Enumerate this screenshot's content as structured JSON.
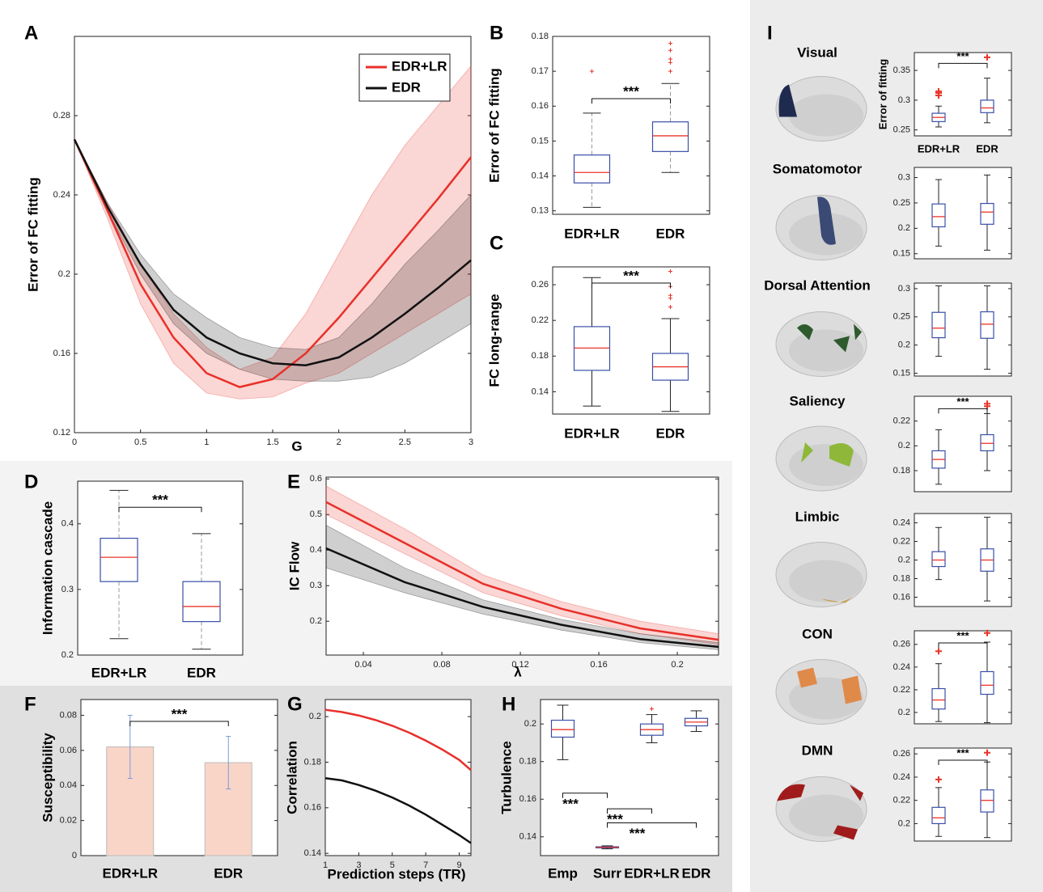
{
  "chart_data": [
    {
      "panel": "A",
      "type": "line",
      "ylabel": "Error of FC fitting",
      "xlabel": "G",
      "x": [
        0,
        0.25,
        0.5,
        0.75,
        1,
        1.25,
        1.5,
        1.75,
        2,
        2.25,
        2.5,
        2.75,
        3
      ],
      "xlim": [
        0,
        3
      ],
      "ylim": [
        0.12,
        0.32
      ],
      "xticks": [
        0,
        0.5,
        1,
        1.5,
        2,
        2.5,
        3
      ],
      "yticks": [
        0.12,
        0.16,
        0.2,
        0.24,
        0.28
      ],
      "legend": "upper right",
      "grid": false,
      "series": [
        {
          "name": "EDR+LR",
          "color": "#e8302a",
          "values": [
            0.268,
            0.232,
            0.195,
            0.168,
            0.15,
            0.143,
            0.147,
            0.16,
            0.178,
            0.198,
            0.218,
            0.238,
            0.259
          ],
          "lower": [
            0.268,
            0.228,
            0.185,
            0.155,
            0.14,
            0.137,
            0.138,
            0.145,
            0.15,
            0.16,
            0.17,
            0.18,
            0.19
          ],
          "upper": [
            0.268,
            0.236,
            0.205,
            0.18,
            0.163,
            0.152,
            0.158,
            0.18,
            0.21,
            0.24,
            0.265,
            0.285,
            0.305
          ]
        },
        {
          "name": "EDR",
          "color": "#111111",
          "values": [
            0.268,
            0.234,
            0.205,
            0.182,
            0.168,
            0.16,
            0.155,
            0.154,
            0.158,
            0.168,
            0.18,
            0.193,
            0.207
          ],
          "lower": [
            0.268,
            0.232,
            0.2,
            0.175,
            0.16,
            0.152,
            0.147,
            0.146,
            0.146,
            0.148,
            0.155,
            0.165,
            0.175
          ],
          "upper": [
            0.268,
            0.236,
            0.21,
            0.19,
            0.178,
            0.168,
            0.163,
            0.162,
            0.168,
            0.185,
            0.205,
            0.222,
            0.24
          ]
        }
      ]
    },
    {
      "panel": "B",
      "type": "box",
      "ylabel": "Error of FC fitting",
      "categories": [
        "EDR+LR",
        "EDR"
      ],
      "ylim": [
        0.129,
        0.18
      ],
      "yticks": [
        0.13,
        0.14,
        0.15,
        0.16,
        0.17,
        0.18
      ],
      "box_color": "#3a4fa8",
      "median_color": "#e8362a",
      "boxes": [
        {
          "low": 0.131,
          "q1": 0.138,
          "median": 0.141,
          "q3": 0.146,
          "high": 0.158,
          "outliers": [
            0.17
          ]
        },
        {
          "low": 0.141,
          "q1": 0.147,
          "median": 0.1515,
          "q3": 0.1555,
          "high": 0.1665,
          "outliers": [
            0.17,
            0.1725,
            0.1735,
            0.176,
            0.178
          ]
        }
      ],
      "significance": [
        {
          "label": "***",
          "pair": [
            0,
            1
          ]
        }
      ]
    },
    {
      "panel": "C",
      "type": "box",
      "ylabel": "FC long-range",
      "categories": [
        "EDR+LR",
        "EDR"
      ],
      "ylim": [
        0.115,
        0.28
      ],
      "yticks": [
        0.14,
        0.18,
        0.22,
        0.26
      ],
      "box_color": "#3a4fa8",
      "median_color": "#e8362a",
      "boxes": [
        {
          "low": 0.124,
          "q1": 0.164,
          "median": 0.189,
          "q3": 0.213,
          "high": 0.268,
          "outliers": []
        },
        {
          "low": 0.118,
          "q1": 0.153,
          "median": 0.168,
          "q3": 0.183,
          "high": 0.222,
          "outliers": [
            0.235,
            0.245,
            0.248,
            0.258,
            0.275
          ]
        }
      ],
      "significance": [
        {
          "label": "***",
          "pair": [
            0,
            1
          ]
        }
      ]
    },
    {
      "panel": "D",
      "type": "box",
      "ylabel": "Information cascade",
      "categories": [
        "EDR+LR",
        "EDR"
      ],
      "ylim": [
        0.2,
        0.465
      ],
      "yticks": [
        0.2,
        0.3,
        0.4
      ],
      "box_color": "#3a4fa8",
      "median_color": "#e8362a",
      "boxes": [
        {
          "low": 0.225,
          "q1": 0.312,
          "median": 0.349,
          "q3": 0.378,
          "high": 0.451,
          "outliers": []
        },
        {
          "low": 0.209,
          "q1": 0.251,
          "median": 0.274,
          "q3": 0.312,
          "high": 0.385,
          "outliers": []
        }
      ],
      "significance": [
        {
          "label": "***",
          "pair": [
            0,
            1
          ]
        }
      ]
    },
    {
      "panel": "E",
      "type": "line",
      "ylabel": "IC Flow",
      "xlabel": "λ",
      "x": [
        0.021,
        0.061,
        0.101,
        0.141,
        0.181,
        0.221
      ],
      "xlim": [
        0.021,
        0.221
      ],
      "ylim": [
        0.105,
        0.605
      ],
      "xticks": [
        0.04,
        0.08,
        0.12,
        0.16,
        0.2
      ],
      "yticks": [
        0.2,
        0.3,
        0.4,
        0.5,
        0.6
      ],
      "grid": false,
      "series": [
        {
          "name": "EDR+LR",
          "color": "#e8302a",
          "values": [
            0.535,
            0.42,
            0.305,
            0.235,
            0.18,
            0.148
          ],
          "lower": [
            0.5,
            0.39,
            0.28,
            0.215,
            0.165,
            0.135
          ],
          "upper": [
            0.58,
            0.46,
            0.33,
            0.255,
            0.2,
            0.165
          ]
        },
        {
          "name": "EDR",
          "color": "#111111",
          "values": [
            0.405,
            0.31,
            0.24,
            0.19,
            0.15,
            0.128
          ],
          "lower": [
            0.35,
            0.28,
            0.22,
            0.175,
            0.14,
            0.12
          ],
          "upper": [
            0.47,
            0.35,
            0.26,
            0.205,
            0.165,
            0.14
          ]
        }
      ]
    },
    {
      "panel": "F",
      "type": "bar",
      "ylabel": "Susceptibility",
      "categories": [
        "EDR+LR",
        "EDR"
      ],
      "ylim": [
        0,
        0.089
      ],
      "yticks": [
        0,
        0.02,
        0.04,
        0.06,
        0.08
      ],
      "color": "#f9d5c8",
      "error_color": "#7a9ad8",
      "values": [
        0.062,
        0.053
      ],
      "errors": [
        0.018,
        0.015
      ],
      "significance": [
        {
          "label": "***",
          "pair": [
            0,
            1
          ]
        }
      ]
    },
    {
      "panel": "G",
      "type": "line",
      "ylabel": "Correlation",
      "xlabel": "Prediction steps (TR)",
      "x": [
        1,
        2,
        3,
        4,
        5,
        6,
        7,
        8,
        9,
        9.7
      ],
      "xlim": [
        1,
        9.7
      ],
      "ylim": [
        0.139,
        0.2075
      ],
      "xticks": [
        1,
        3,
        5,
        7,
        9
      ],
      "yticks": [
        0.14,
        0.16,
        0.18,
        0.2
      ],
      "grid": false,
      "series": [
        {
          "name": "EDR+LR",
          "color": "#e8302a",
          "values": [
            0.203,
            0.202,
            0.2005,
            0.1985,
            0.196,
            0.193,
            0.1895,
            0.1855,
            0.181,
            0.1765
          ]
        },
        {
          "name": "EDR",
          "color": "#111111",
          "values": [
            0.173,
            0.172,
            0.17,
            0.1675,
            0.1645,
            0.161,
            0.157,
            0.1525,
            0.148,
            0.1445
          ]
        }
      ]
    },
    {
      "panel": "H",
      "type": "box",
      "ylabel": "Turbulence",
      "categories": [
        "Emp",
        "Surr",
        "EDR+LR",
        "EDR"
      ],
      "ylim": [
        0.13,
        0.213
      ],
      "yticks": [
        0.14,
        0.16,
        0.18,
        0.2
      ],
      "box_color": "#3a4fa8",
      "median_color": "#e8362a",
      "boxes": [
        {
          "low": 0.181,
          "q1": 0.193,
          "median": 0.197,
          "q3": 0.202,
          "high": 0.21,
          "outliers": []
        },
        {
          "low": 0.1336,
          "q1": 0.1341,
          "median": 0.1344,
          "q3": 0.1347,
          "high": 0.1352,
          "outliers": []
        },
        {
          "low": 0.19,
          "q1": 0.194,
          "median": 0.197,
          "q3": 0.2,
          "high": 0.205,
          "outliers": [
            0.208
          ]
        },
        {
          "low": 0.196,
          "q1": 0.199,
          "median": 0.201,
          "q3": 0.203,
          "high": 0.207,
          "outliers": []
        }
      ],
      "significance": [
        {
          "label": "***",
          "pair": [
            0,
            1
          ]
        },
        {
          "label": "***",
          "pair": [
            1,
            2
          ]
        },
        {
          "label": "***",
          "pair": [
            1,
            3
          ]
        }
      ]
    },
    {
      "panel": "I",
      "title": "Visual",
      "type": "box",
      "ylabel": "Error of fitting",
      "categories": [
        "EDR+LR",
        "EDR"
      ],
      "highlight_color": "#1f2a4f",
      "ylim": [
        0.24,
        0.38
      ],
      "yticks": [
        0.25,
        0.3,
        0.35
      ],
      "box_color": "#3a4fa8",
      "median_color": "#e8362a",
      "boxes": [
        {
          "low": 0.255,
          "q1": 0.264,
          "median": 0.271,
          "q3": 0.278,
          "high": 0.29,
          "outliers": [
            0.308,
            0.312,
            0.315
          ]
        },
        {
          "low": 0.262,
          "q1": 0.279,
          "median": 0.287,
          "q3": 0.3,
          "high": 0.337,
          "outliers": [
            0.372
          ]
        }
      ],
      "significance": [
        {
          "label": "***",
          "pair": [
            0,
            1
          ]
        }
      ]
    },
    {
      "title": "Somatomotor",
      "type": "box",
      "categories": [
        null,
        null
      ],
      "highlight_color": "#3b4a75",
      "ylim": [
        0.14,
        0.32
      ],
      "yticks": [
        0.15,
        0.2,
        0.25,
        0.3
      ],
      "box_color": "#3a4fa8",
      "median_color": "#e8362a",
      "boxes": [
        {
          "low": 0.165,
          "q1": 0.203,
          "median": 0.223,
          "q3": 0.248,
          "high": 0.296,
          "outliers": []
        },
        {
          "low": 0.157,
          "q1": 0.208,
          "median": 0.232,
          "q3": 0.249,
          "high": 0.305,
          "outliers": []
        }
      ]
    },
    {
      "title": "Dorsal Attention",
      "type": "box",
      "categories": [
        null,
        null
      ],
      "highlight_color": "#2e5a2e",
      "ylim": [
        0.145,
        0.31
      ],
      "yticks": [
        0.15,
        0.2,
        0.25,
        0.3
      ],
      "box_color": "#3a4fa8",
      "median_color": "#e8362a",
      "boxes": [
        {
          "low": 0.18,
          "q1": 0.213,
          "median": 0.23,
          "q3": 0.258,
          "high": 0.305,
          "outliers": []
        },
        {
          "low": 0.157,
          "q1": 0.212,
          "median": 0.237,
          "q3": 0.259,
          "high": 0.305,
          "outliers": []
        }
      ]
    },
    {
      "title": "Saliency",
      "type": "box",
      "categories": [
        null,
        null
      ],
      "highlight_color": "#8fb83a",
      "ylim": [
        0.163,
        0.24
      ],
      "yticks": [
        0.18,
        0.2,
        0.22
      ],
      "box_color": "#3a4fa8",
      "median_color": "#e8362a",
      "boxes": [
        {
          "low": 0.169,
          "q1": 0.182,
          "median": 0.189,
          "q3": 0.196,
          "high": 0.213,
          "outliers": []
        },
        {
          "low": 0.18,
          "q1": 0.196,
          "median": 0.202,
          "q3": 0.209,
          "high": 0.226,
          "outliers": [
            0.232,
            0.234
          ]
        }
      ],
      "significance": [
        {
          "label": "***",
          "pair": [
            0,
            1
          ]
        }
      ]
    },
    {
      "title": "Limbic",
      "type": "box",
      "categories": [
        null,
        null
      ],
      "highlight_color": "#c8a050",
      "ylim": [
        0.15,
        0.25
      ],
      "yticks": [
        0.16,
        0.18,
        0.2,
        0.22,
        0.24
      ],
      "box_color": "#3a4fa8",
      "median_color": "#e8362a",
      "boxes": [
        {
          "low": 0.179,
          "q1": 0.193,
          "median": 0.2,
          "q3": 0.209,
          "high": 0.235,
          "outliers": []
        },
        {
          "low": 0.156,
          "q1": 0.188,
          "median": 0.2,
          "q3": 0.212,
          "high": 0.246,
          "outliers": []
        }
      ]
    },
    {
      "title": "CON",
      "type": "box",
      "categories": [
        null,
        null
      ],
      "highlight_color": "#e08a4a",
      "ylim": [
        0.19,
        0.272
      ],
      "yticks": [
        0.2,
        0.22,
        0.24,
        0.26
      ],
      "box_color": "#3a4fa8",
      "median_color": "#e8362a",
      "boxes": [
        {
          "low": 0.192,
          "q1": 0.203,
          "median": 0.211,
          "q3": 0.221,
          "high": 0.243,
          "outliers": [
            0.254
          ]
        },
        {
          "low": 0.191,
          "q1": 0.216,
          "median": 0.224,
          "q3": 0.236,
          "high": 0.262,
          "outliers": [
            0.27
          ]
        }
      ],
      "significance": [
        {
          "label": "***",
          "pair": [
            0,
            1
          ]
        }
      ]
    },
    {
      "title": "DMN",
      "type": "box",
      "categories": [
        null,
        null
      ],
      "highlight_color": "#a01c1c",
      "ylim": [
        0.185,
        0.265
      ],
      "yticks": [
        0.2,
        0.22,
        0.24,
        0.26
      ],
      "box_color": "#3a4fa8",
      "median_color": "#e8362a",
      "boxes": [
        {
          "low": 0.189,
          "q1": 0.2,
          "median": 0.205,
          "q3": 0.214,
          "high": 0.231,
          "outliers": [
            0.238
          ]
        },
        {
          "low": 0.188,
          "q1": 0.21,
          "median": 0.22,
          "q3": 0.229,
          "high": 0.253,
          "outliers": [
            0.261
          ]
        }
      ],
      "significance": [
        {
          "label": "***",
          "pair": [
            0,
            1
          ]
        }
      ]
    }
  ]
}
